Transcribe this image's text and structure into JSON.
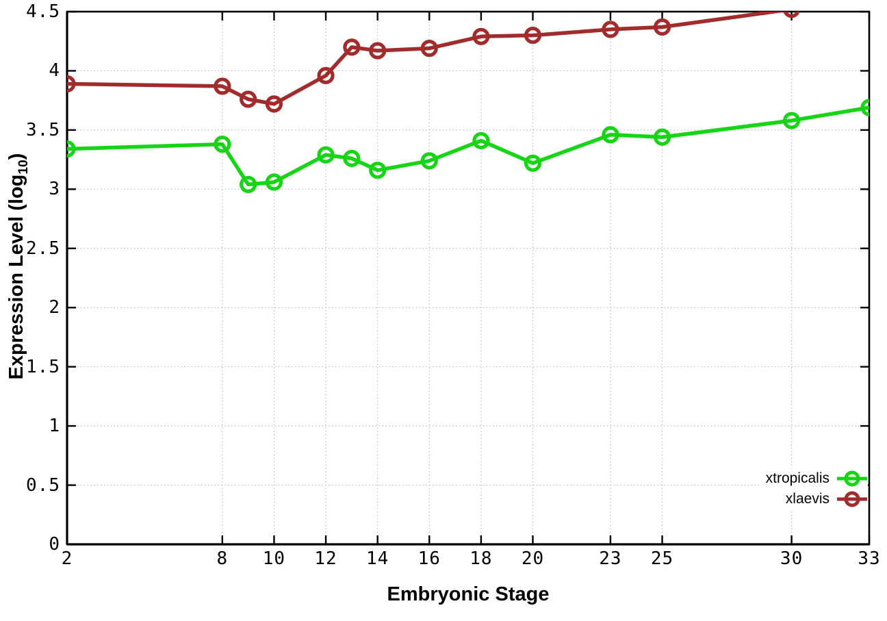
{
  "chart": {
    "background": "#ffffff",
    "xlabel": "Embryonic Stage",
    "ylabel_prefix": "Expression Level (log",
    "ylabel_sub": "10",
    "ylabel_suffix": ")",
    "axis_color": "#000000",
    "grid_color": "#b9b9b9",
    "text_color": "#000000"
  },
  "chart_data": {
    "type": "line",
    "title": "",
    "xlabel": "Embryonic Stage",
    "ylabel": "Expression Level (log10)",
    "x": [
      2,
      8,
      9,
      10,
      12,
      13,
      14,
      16,
      18,
      20,
      23,
      25,
      30,
      33
    ],
    "series": [
      {
        "name": "xtropicalis",
        "color": "#15d515",
        "values": [
          3.34,
          3.38,
          3.04,
          3.06,
          3.29,
          3.26,
          3.16,
          3.24,
          3.41,
          3.22,
          3.46,
          3.44,
          3.58,
          3.69
        ]
      },
      {
        "name": "xlaevis",
        "color": "#a22c2c",
        "values": [
          3.89,
          3.87,
          3.76,
          3.72,
          3.96,
          4.2,
          4.17,
          4.19,
          4.29,
          4.3,
          4.35,
          4.37,
          4.52,
          4.58
        ]
      }
    ],
    "xticks": [
      2,
      8,
      10,
      12,
      14,
      16,
      18,
      20,
      23,
      25,
      30,
      33
    ],
    "yticks": [
      "0",
      "0.5",
      "1",
      "1.5",
      "2",
      "2.5",
      "3",
      "3.5",
      "4",
      "4.5"
    ],
    "xlim": [
      2,
      33
    ],
    "ylim": [
      0,
      4.5
    ],
    "grid": true,
    "legend_position": "bottom-right",
    "marker": "open-circle",
    "note": "xlaevis line is clipped at the top axis (values exceed 4.5 after stage ~29)"
  }
}
